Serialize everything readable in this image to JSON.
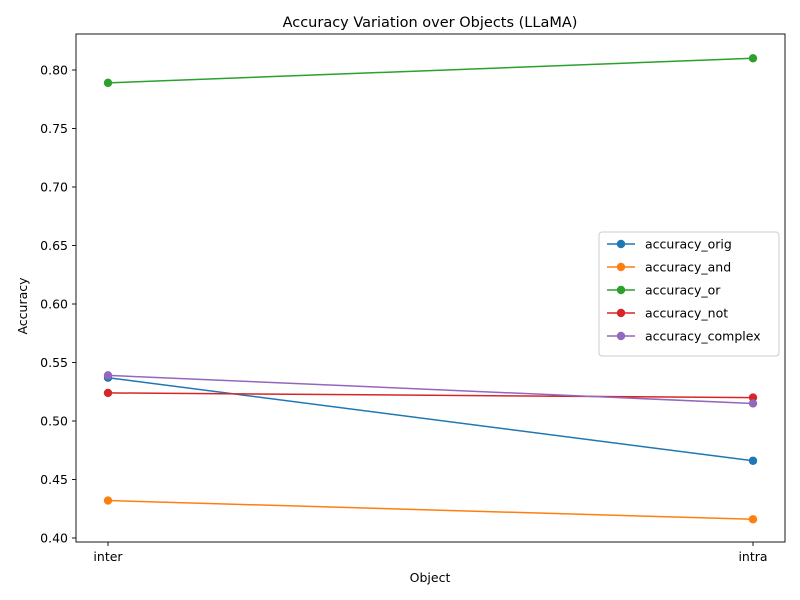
{
  "chart_data": {
    "type": "line",
    "title": "Accuracy Variation over Objects (LLaMA)",
    "xlabel": "Object",
    "ylabel": "Accuracy",
    "categories": [
      "inter",
      "intra"
    ],
    "ylim": [
      0.4,
      0.83
    ],
    "yticks": [
      0.4,
      0.45,
      0.5,
      0.55,
      0.6,
      0.65,
      0.7,
      0.75,
      0.8
    ],
    "ytick_labels": [
      "0.40",
      "0.45",
      "0.50",
      "0.55",
      "0.60",
      "0.65",
      "0.70",
      "0.75",
      "0.80"
    ],
    "grid": false,
    "legend_position": "center-right",
    "series": [
      {
        "name": "accuracy_orig",
        "color": "#1f77b4",
        "values": [
          0.537,
          0.466
        ]
      },
      {
        "name": "accuracy_and",
        "color": "#ff7f0e",
        "values": [
          0.432,
          0.416
        ]
      },
      {
        "name": "accuracy_or",
        "color": "#2ca02c",
        "values": [
          0.789,
          0.81
        ]
      },
      {
        "name": "accuracy_not",
        "color": "#d62728",
        "values": [
          0.524,
          0.52
        ]
      },
      {
        "name": "accuracy_complex",
        "color": "#9467bd",
        "values": [
          0.539,
          0.515
        ]
      }
    ]
  }
}
